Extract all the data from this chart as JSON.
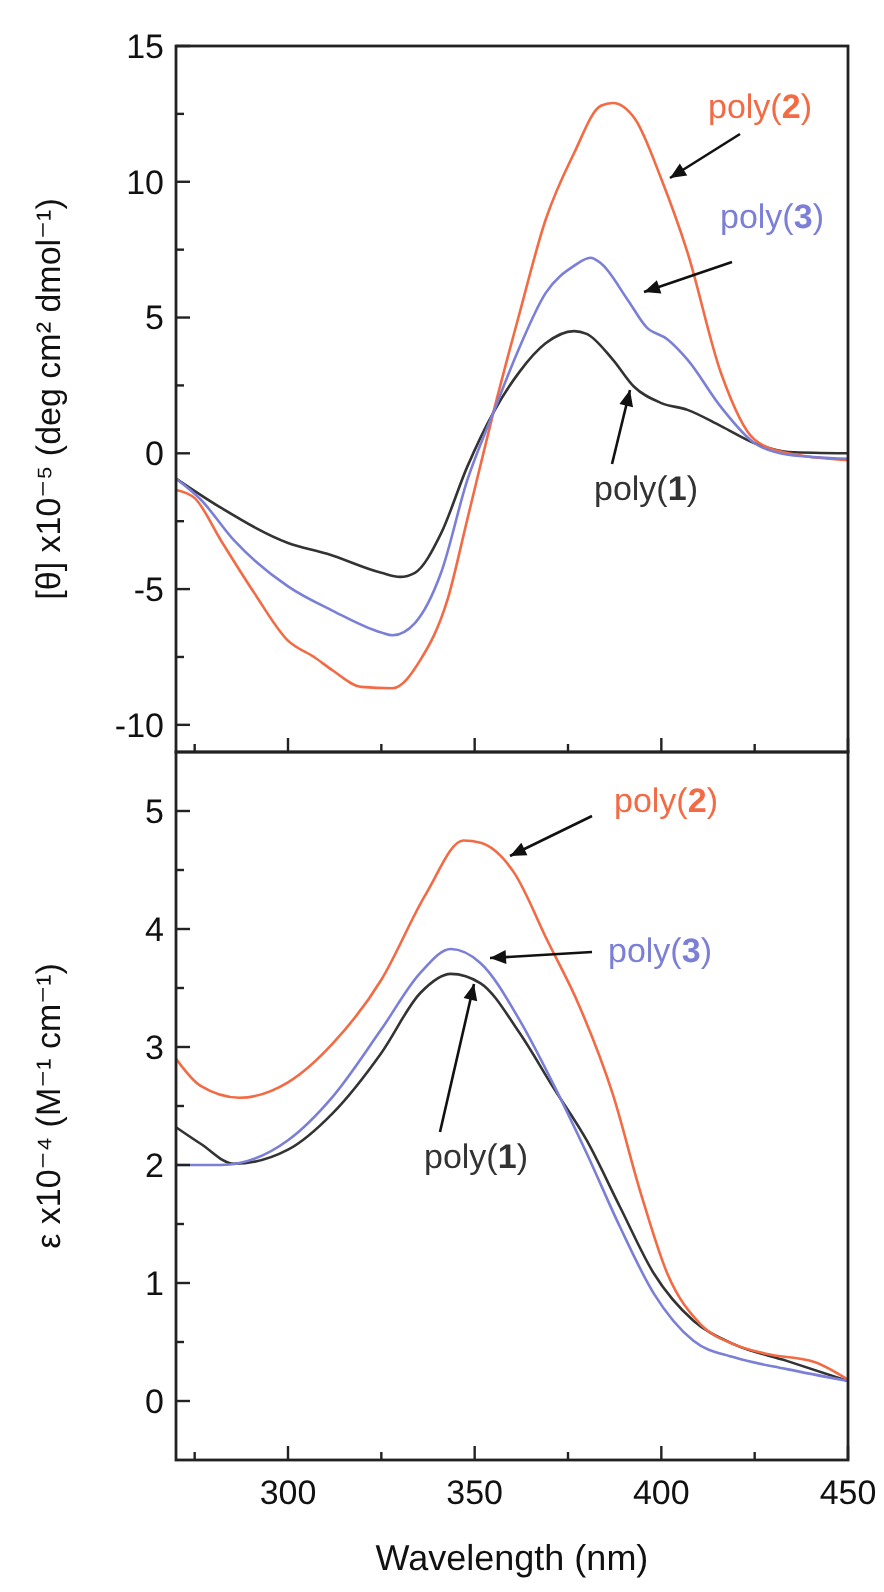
{
  "chart_data": [
    {
      "type": "line",
      "ylabel": "[θ] x10⁻⁵ (deg cm² dmol⁻¹)",
      "xlim": [
        270,
        450
      ],
      "xticks": [
        {
          "value": 275,
          "label": null
        },
        300,
        {
          "value": 325,
          "label": null
        },
        350,
        {
          "value": 375,
          "label": null
        },
        400,
        {
          "value": 425,
          "label": null
        },
        450
      ],
      "ylim": [
        -11,
        15
      ],
      "yticks": [
        -10,
        {
          "value": -7.5,
          "label": null
        },
        -5,
        {
          "value": -2.5,
          "label": null
        },
        0,
        {
          "value": 2.5,
          "label": null
        },
        5,
        {
          "value": 7.5,
          "label": null
        },
        10,
        {
          "value": 12.5,
          "label": null
        },
        15
      ],
      "tick_labels": "y",
      "series": [
        {
          "name": "poly(1)",
          "color": "#333333",
          "x": [
            270,
            282,
            300,
            310.5,
            325,
            330,
            334,
            341,
            348,
            355,
            362,
            369,
            376.6,
            380,
            387,
            392.7,
            400,
            407,
            416,
            425,
            434,
            450
          ],
          "values": [
            -0.93,
            -2,
            -3.3,
            -3.7,
            -4.4,
            -4.55,
            -4.4,
            -2.95,
            -0.5,
            1.5,
            3,
            4.05,
            4.5,
            4.4,
            3.45,
            2.45,
            1.85,
            1.6,
            1,
            0.37,
            0.05,
            0
          ]
        },
        {
          "name": "poly(2)",
          "color": "#f26b45",
          "x": [
            270,
            275,
            282,
            291,
            300,
            307,
            312,
            319.6,
            328,
            335.5,
            342.7,
            348,
            355,
            362,
            369,
            376.6,
            383.8,
            387,
            393,
            400,
            407,
            416,
            425,
            434,
            450
          ],
          "values": [
            -1.35,
            -1.65,
            -3.2,
            -5.15,
            -6.9,
            -7.5,
            -8,
            -8.6,
            -8.65,
            -7.6,
            -5.4,
            -2.45,
            1.5,
            5.15,
            8.6,
            11.05,
            12.8,
            12.9,
            12.3,
            10.1,
            7.4,
            2.95,
            0.5,
            0,
            -0.25
          ]
        },
        {
          "name": "poly(3)",
          "color": "#7b7fd6",
          "x": [
            270,
            276.6,
            285.5,
            300,
            312,
            325,
            328,
            334,
            341,
            348,
            355,
            362,
            369,
            376.6,
            381,
            383.8,
            391,
            396,
            401.6,
            407,
            416,
            425,
            434,
            450
          ],
          "values": [
            -0.93,
            -1.7,
            -3.2,
            -4.9,
            -5.8,
            -6.6,
            -6.7,
            -6.25,
            -4.4,
            -1,
            1.5,
            3.9,
            5.9,
            6.9,
            7.2,
            7,
            5.65,
            4.65,
            4.2,
            3.45,
            1.7,
            0.37,
            -0.05,
            -0.2
          ]
        }
      ]
    },
    {
      "type": "line",
      "xlabel": "Wavelength (nm)",
      "ylabel": "ε x10⁻⁴ (M⁻¹ cm⁻¹)",
      "xlim": [
        270,
        450
      ],
      "xticks": [
        {
          "value": 275,
          "label": null
        },
        300,
        {
          "value": 325,
          "label": null
        },
        350,
        {
          "value": 375,
          "label": null
        },
        400,
        {
          "value": 425,
          "label": null
        },
        450
      ],
      "ylim": [
        -0.5,
        5.5
      ],
      "yticks": [
        0,
        {
          "value": 0.5,
          "label": null
        },
        1,
        {
          "value": 1.5,
          "label": null
        },
        2,
        {
          "value": 2.5,
          "label": null
        },
        3,
        {
          "value": 3.5,
          "label": null
        },
        4,
        {
          "value": 4.5,
          "label": null
        },
        5
      ],
      "series": [
        {
          "name": "poly(1)",
          "color": "#333333",
          "x": [
            270,
            276.6,
            285.5,
            300,
            312,
            325,
            335.5,
            343.6,
            351.6,
            362,
            371,
            380,
            389,
            398,
            408.6,
            419.5,
            433.6,
            450
          ],
          "values": [
            2.32,
            2.18,
            2.01,
            2.13,
            2.44,
            2.95,
            3.46,
            3.62,
            3.54,
            3.12,
            2.66,
            2.21,
            1.64,
            1.08,
            0.68,
            0.48,
            0.34,
            0.17
          ]
        },
        {
          "name": "poly(2)",
          "color": "#f26b45",
          "x": [
            270,
            276.6,
            287,
            300,
            312,
            325,
            337,
            347,
            351.6,
            360.5,
            369.5,
            378,
            387,
            394.5,
            401.6,
            410.5,
            419.5,
            428,
            441,
            450
          ],
          "values": [
            2.9,
            2.67,
            2.57,
            2.7,
            3.03,
            3.57,
            4.3,
            4.75,
            4.73,
            4.48,
            3.9,
            3.35,
            2.6,
            1.76,
            1.08,
            0.65,
            0.48,
            0.4,
            0.33,
            0.18
          ]
        },
        {
          "name": "poly(3)",
          "color": "#7b7fd6",
          "x": [
            270,
            282,
            300,
            312,
            325,
            335.5,
            343.6,
            351.6,
            362,
            371,
            380,
            389,
            398,
            408.6,
            419.5,
            433.6,
            450
          ],
          "values": [
            2,
            2,
            2.21,
            2.58,
            3.15,
            3.63,
            3.83,
            3.71,
            3.23,
            2.69,
            2.1,
            1.47,
            0.91,
            0.51,
            0.37,
            0.27,
            0.17
          ]
        }
      ]
    }
  ]
}
